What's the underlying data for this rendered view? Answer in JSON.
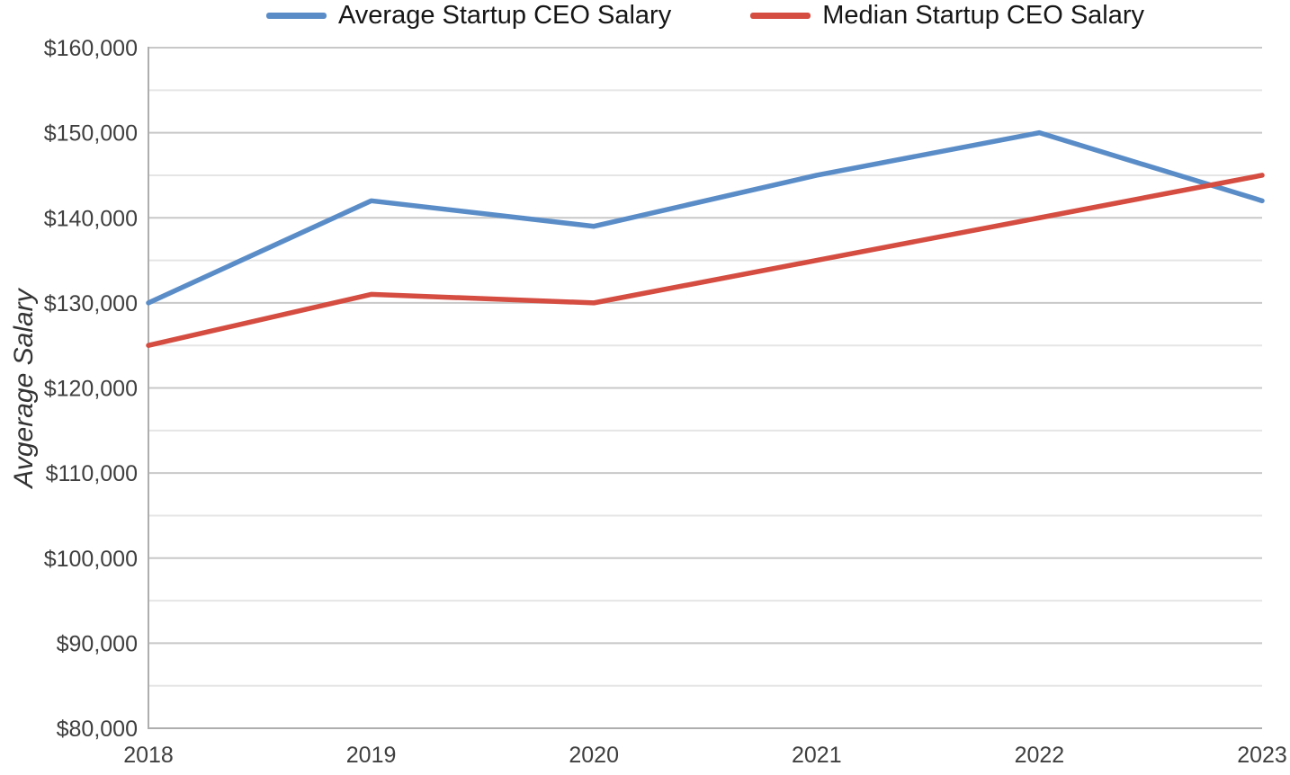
{
  "chart_data": {
    "type": "line",
    "title": "",
    "xlabel": "",
    "ylabel": "Avgerage Salary",
    "categories": [
      "2018",
      "2019",
      "2020",
      "2021",
      "2022",
      "2023"
    ],
    "series": [
      {
        "name": "Average Startup CEO Salary",
        "color": "#5a8dc8",
        "values": [
          130000,
          142000,
          139000,
          145000,
          150000,
          142000
        ]
      },
      {
        "name": "Median Startup CEO Salary",
        "color": "#d54c41",
        "values": [
          125000,
          131000,
          130000,
          135000,
          140000,
          145000
        ]
      }
    ],
    "ylim": [
      80000,
      160000
    ],
    "y_major_step": 10000,
    "y_minor_step": 5000,
    "y_tick_labels": [
      "$80,000",
      "$90,000",
      "$100,000",
      "$110,000",
      "$120,000",
      "$130,000",
      "$140,000",
      "$150,000",
      "$160,000"
    ],
    "grid": "horizontal, major every $10,000 and minor every $5,000",
    "legend_position": "top-center",
    "colors": {
      "grid_major": "#c8c8c8",
      "grid_minor": "#e5e5e5",
      "axis": "#aeaeae",
      "tick_text": "#3f3f3f",
      "legend_text": "#161616",
      "axis_title_text": "#333333"
    }
  }
}
